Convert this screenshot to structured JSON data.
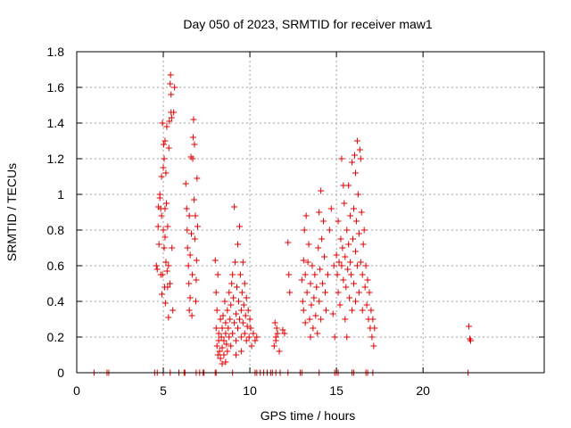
{
  "chart_data": {
    "type": "scatter",
    "title": "Day 050 of 2023, SRMTID for receiver maw1",
    "xlabel": "GPS time / hours",
    "ylabel": "SRMTID / TECUs",
    "xlim": [
      0,
      27
    ],
    "ylim": [
      0,
      1.8
    ],
    "x_ticks": [
      0,
      5,
      10,
      15,
      20
    ],
    "y_ticks": [
      0,
      0.2,
      0.4,
      0.6,
      0.8,
      1,
      1.2,
      1.4,
      1.6,
      1.8
    ],
    "y_tick_labels": [
      "0",
      "0.2",
      "0.4",
      "0.6",
      "0.8",
      "1",
      "1.2",
      "1.4",
      "1.6",
      "1.8"
    ],
    "grid": true,
    "marker": "plus",
    "marker_color": "#e00000",
    "zero_points_x": [
      1.0,
      1.75,
      1.85,
      4.5,
      4.65,
      5.0,
      5.4,
      5.9,
      6.2,
      6.25,
      6.9,
      7.1,
      7.3,
      7.35,
      8.0,
      8.05,
      9.0,
      10.3,
      10.4,
      10.6,
      10.8,
      11.0,
      11.2,
      11.3,
      11.5,
      11.75,
      12.2,
      12.9,
      13.0,
      14.0,
      14.9,
      15.0,
      15.1,
      15.9,
      16.0,
      16.7,
      16.8,
      17.1,
      22.6
    ],
    "clusters": [
      {
        "x_range": [
          4.6,
          5.7
        ],
        "y_range": [
          0.3,
          1.7
        ]
      },
      {
        "x_range": [
          6.3,
          7.0
        ],
        "y_range": [
          0.3,
          1.42
        ]
      },
      {
        "x_range": [
          7.9,
          11.0
        ],
        "y_range": [
          0.08,
          0.93
        ]
      },
      {
        "x_range": [
          11.0,
          12.4
        ],
        "y_range": [
          0.12,
          0.74
        ]
      },
      {
        "x_range": [
          13.0,
          15.0
        ],
        "y_range": [
          0.18,
          1.02
        ]
      },
      {
        "x_range": [
          15.0,
          17.2
        ],
        "y_range": [
          0.15,
          1.31
        ]
      },
      {
        "x_range": [
          22.6,
          22.8
        ],
        "y_range": [
          0.18,
          0.26
        ]
      }
    ],
    "points": [
      [
        4.6,
        0.6
      ],
      [
        4.65,
        0.58
      ],
      [
        4.7,
        0.82
      ],
      [
        4.72,
        0.93
      ],
      [
        4.75,
        0.72
      ],
      [
        4.8,
        0.98
      ],
      [
        4.8,
        1.0
      ],
      [
        4.85,
        0.55
      ],
      [
        4.85,
        0.92
      ],
      [
        4.9,
        0.88
      ],
      [
        4.9,
        1.1
      ],
      [
        4.92,
        0.44
      ],
      [
        4.95,
        1.4
      ],
      [
        5.0,
        0.8
      ],
      [
        5.0,
        1.15
      ],
      [
        5.02,
        1.28
      ],
      [
        5.05,
        1.2
      ],
      [
        5.05,
        0.7
      ],
      [
        5.1,
        1.3
      ],
      [
        5.1,
        0.92
      ],
      [
        5.12,
        0.39
      ],
      [
        5.15,
        0.62
      ],
      [
        5.15,
        1.12
      ],
      [
        5.2,
        1.38
      ],
      [
        5.22,
        0.57
      ],
      [
        5.25,
        0.48
      ],
      [
        5.25,
        0.82
      ],
      [
        5.3,
        0.31
      ],
      [
        5.3,
        0.6
      ],
      [
        5.32,
        1.26
      ],
      [
        5.35,
        1.41
      ],
      [
        5.38,
        0.5
      ],
      [
        5.4,
        1.62
      ],
      [
        5.42,
        1.67
      ],
      [
        5.45,
        1.56
      ],
      [
        5.45,
        1.46
      ],
      [
        5.48,
        1.43
      ],
      [
        5.5,
        0.7
      ],
      [
        5.55,
        0.35
      ],
      [
        5.6,
        1.46
      ],
      [
        5.65,
        1.6
      ],
      [
        5.1,
        0.76
      ],
      [
        4.95,
        0.55
      ],
      [
        5.08,
        0.48
      ],
      [
        5.18,
        0.95
      ],
      [
        6.3,
        1.06
      ],
      [
        6.35,
        0.92
      ],
      [
        6.38,
        0.8
      ],
      [
        6.4,
        0.7
      ],
      [
        6.45,
        0.6
      ],
      [
        6.48,
        0.5
      ],
      [
        6.5,
        0.88
      ],
      [
        6.55,
        0.42
      ],
      [
        6.55,
        0.66
      ],
      [
        6.6,
        1.21
      ],
      [
        6.62,
        0.78
      ],
      [
        6.65,
        0.32
      ],
      [
        6.68,
        0.55
      ],
      [
        6.7,
        1.2
      ],
      [
        6.72,
        1.32
      ],
      [
        6.75,
        1.42
      ],
      [
        6.78,
        0.97
      ],
      [
        6.8,
        1.28
      ],
      [
        6.82,
        0.75
      ],
      [
        6.85,
        0.88
      ],
      [
        6.88,
        0.4
      ],
      [
        6.9,
        0.52
      ],
      [
        6.92,
        0.63
      ],
      [
        6.95,
        1.09
      ],
      [
        6.98,
        0.82
      ],
      [
        6.5,
        0.35
      ],
      [
        8.0,
        0.63
      ],
      [
        8.05,
        0.45
      ],
      [
        8.05,
        0.25
      ],
      [
        8.1,
        0.15
      ],
      [
        8.1,
        0.35
      ],
      [
        8.15,
        0.1
      ],
      [
        8.15,
        0.55
      ],
      [
        8.2,
        0.22
      ],
      [
        8.2,
        0.18
      ],
      [
        8.25,
        0.12
      ],
      [
        8.3,
        0.3
      ],
      [
        8.3,
        0.08
      ],
      [
        8.35,
        0.2
      ],
      [
        8.4,
        0.25
      ],
      [
        8.4,
        0.14
      ],
      [
        8.45,
        0.32
      ],
      [
        8.5,
        0.18
      ],
      [
        8.5,
        0.1
      ],
      [
        8.55,
        0.4
      ],
      [
        8.6,
        0.22
      ],
      [
        8.6,
        0.28
      ],
      [
        8.65,
        0.16
      ],
      [
        8.7,
        0.12
      ],
      [
        8.7,
        0.35
      ],
      [
        8.75,
        0.25
      ],
      [
        8.8,
        0.2
      ],
      [
        8.8,
        0.45
      ],
      [
        8.85,
        0.3
      ],
      [
        8.9,
        0.38
      ],
      [
        8.9,
        0.15
      ],
      [
        8.95,
        0.5
      ],
      [
        9.0,
        0.55
      ],
      [
        9.0,
        0.22
      ],
      [
        9.05,
        0.42
      ],
      [
        9.1,
        0.93
      ],
      [
        9.1,
        0.28
      ],
      [
        9.15,
        0.62
      ],
      [
        9.2,
        0.33
      ],
      [
        9.2,
        0.18
      ],
      [
        9.25,
        0.48
      ],
      [
        9.3,
        0.72
      ],
      [
        9.3,
        0.25
      ],
      [
        9.35,
        0.4
      ],
      [
        9.4,
        0.3
      ],
      [
        9.4,
        0.82
      ],
      [
        9.45,
        0.55
      ],
      [
        9.5,
        0.2
      ],
      [
        9.5,
        0.35
      ],
      [
        9.55,
        0.45
      ],
      [
        9.6,
        0.28
      ],
      [
        9.6,
        0.62
      ],
      [
        9.65,
        0.38
      ],
      [
        9.7,
        0.22
      ],
      [
        9.7,
        0.5
      ],
      [
        9.75,
        0.32
      ],
      [
        9.8,
        0.18
      ],
      [
        9.8,
        0.42
      ],
      [
        9.85,
        0.26
      ],
      [
        9.9,
        0.35
      ],
      [
        9.95,
        0.2
      ],
      [
        10.0,
        0.3
      ],
      [
        10.05,
        0.25
      ],
      [
        10.1,
        0.15
      ],
      [
        10.2,
        0.22
      ],
      [
        10.3,
        0.18
      ],
      [
        10.4,
        0.2
      ],
      [
        8.4,
        0.05
      ],
      [
        8.6,
        0.06
      ],
      [
        9.2,
        0.1
      ],
      [
        9.5,
        0.12
      ],
      [
        11.4,
        0.15
      ],
      [
        11.45,
        0.28
      ],
      [
        11.5,
        0.2
      ],
      [
        11.5,
        0.18
      ],
      [
        11.55,
        0.25
      ],
      [
        11.6,
        0.22
      ],
      [
        11.7,
        0.12
      ],
      [
        11.9,
        0.24
      ],
      [
        12.0,
        0.22
      ],
      [
        12.2,
        0.73
      ],
      [
        12.25,
        0.55
      ],
      [
        12.3,
        0.45
      ],
      [
        13.0,
        0.52
      ],
      [
        13.05,
        0.4
      ],
      [
        13.1,
        0.63
      ],
      [
        13.1,
        0.35
      ],
      [
        13.15,
        0.8
      ],
      [
        13.2,
        0.55
      ],
      [
        13.2,
        0.28
      ],
      [
        13.25,
        0.88
      ],
      [
        13.3,
        0.45
      ],
      [
        13.35,
        0.62
      ],
      [
        13.4,
        0.72
      ],
      [
        13.45,
        0.3
      ],
      [
        13.5,
        0.5
      ],
      [
        13.5,
        0.2
      ],
      [
        13.55,
        0.38
      ],
      [
        13.6,
        0.6
      ],
      [
        13.65,
        0.25
      ],
      [
        13.7,
        0.42
      ],
      [
        13.75,
        0.55
      ],
      [
        13.8,
        0.32
      ],
      [
        13.85,
        0.48
      ],
      [
        13.9,
        0.22
      ],
      [
        13.95,
        0.7
      ],
      [
        14.0,
        0.9
      ],
      [
        14.0,
        0.4
      ],
      [
        14.05,
        0.58
      ],
      [
        14.1,
        1.02
      ],
      [
        14.1,
        0.3
      ],
      [
        14.15,
        0.75
      ],
      [
        14.2,
        0.5
      ],
      [
        14.25,
        0.85
      ],
      [
        14.3,
        0.65
      ],
      [
        14.35,
        0.45
      ],
      [
        14.4,
        0.35
      ],
      [
        14.5,
        0.55
      ],
      [
        14.6,
        0.8
      ],
      [
        14.7,
        0.92
      ],
      [
        14.8,
        0.33
      ],
      [
        14.85,
        0.6
      ],
      [
        14.9,
        0.2
      ],
      [
        15.0,
        0.66
      ],
      [
        15.05,
        0.55
      ],
      [
        15.1,
        0.85
      ],
      [
        15.1,
        0.45
      ],
      [
        15.15,
        0.62
      ],
      [
        15.2,
        0.38
      ],
      [
        15.25,
        0.75
      ],
      [
        15.3,
        1.2
      ],
      [
        15.3,
        0.6
      ],
      [
        15.35,
        0.7
      ],
      [
        15.4,
        0.52
      ],
      [
        15.45,
        0.95
      ],
      [
        15.5,
        0.3
      ],
      [
        15.5,
        0.65
      ],
      [
        15.55,
        0.48
      ],
      [
        15.6,
        0.8
      ],
      [
        15.6,
        0.2
      ],
      [
        15.65,
        0.58
      ],
      [
        15.7,
        1.05
      ],
      [
        15.7,
        0.72
      ],
      [
        15.75,
        0.42
      ],
      [
        15.8,
        0.88
      ],
      [
        15.8,
        0.62
      ],
      [
        15.85,
        0.55
      ],
      [
        15.9,
        0.35
      ],
      [
        15.9,
        1.18
      ],
      [
        15.95,
        0.75
      ],
      [
        16.0,
        0.92
      ],
      [
        16.0,
        0.5
      ],
      [
        16.05,
        1.22
      ],
      [
        16.1,
        0.68
      ],
      [
        16.1,
        0.4
      ],
      [
        16.15,
        0.85
      ],
      [
        16.2,
        1.3
      ],
      [
        16.2,
        0.6
      ],
      [
        16.25,
        1.0
      ],
      [
        16.3,
        0.78
      ],
      [
        16.3,
        0.45
      ],
      [
        16.35,
        1.25
      ],
      [
        16.4,
        0.62
      ],
      [
        16.45,
        0.9
      ],
      [
        16.5,
        0.55
      ],
      [
        16.5,
        0.35
      ],
      [
        16.55,
        0.72
      ],
      [
        16.6,
        0.8
      ],
      [
        16.65,
        0.48
      ],
      [
        16.7,
        0.6
      ],
      [
        16.75,
        0.38
      ],
      [
        16.8,
        0.52
      ],
      [
        16.85,
        0.3
      ],
      [
        16.9,
        0.45
      ],
      [
        16.95,
        0.25
      ],
      [
        17.0,
        0.35
      ],
      [
        17.05,
        0.2
      ],
      [
        17.1,
        0.3
      ],
      [
        17.15,
        0.15
      ],
      [
        17.2,
        0.25
      ],
      [
        16.1,
        1.12
      ],
      [
        15.4,
        1.05
      ],
      [
        16.4,
        1.2
      ],
      [
        22.65,
        0.26
      ],
      [
        22.7,
        0.19
      ],
      [
        22.75,
        0.18
      ]
    ]
  }
}
